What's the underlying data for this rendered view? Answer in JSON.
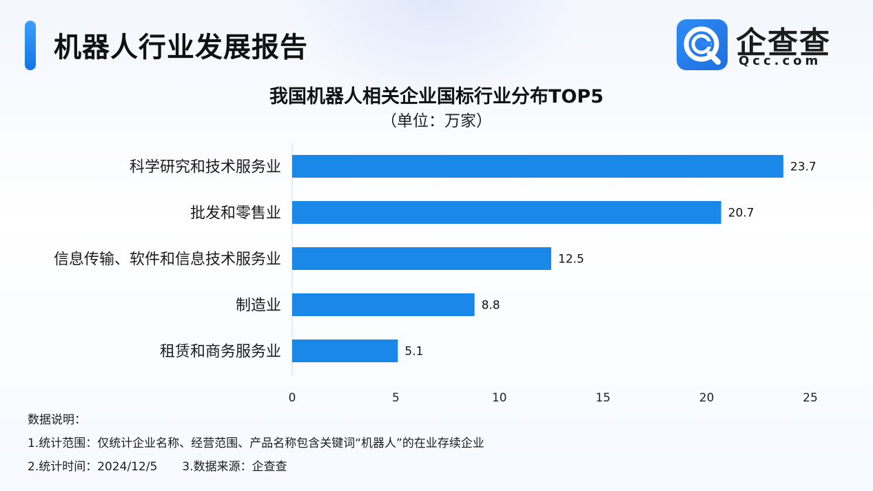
{
  "header": {
    "title": "机器人行业发展报告"
  },
  "logo": {
    "name": "企查查",
    "domain": "Qcc.com",
    "icon": "magnifier-q-icon"
  },
  "colors": {
    "bar": "#1a88e9",
    "accent": "#1473e6",
    "axis": "#d4d9e2"
  },
  "chart_data": {
    "type": "bar",
    "orientation": "horizontal",
    "title": "我国机器人相关企业国标行业分布TOP5",
    "subtitle": "（单位：万家）",
    "categories": [
      "科学研究和技术服务业",
      "批发和零售业",
      "信息传输、软件和信息技术服务业",
      "制造业",
      "租赁和商务服务业"
    ],
    "values": [
      23.7,
      20.7,
      12.5,
      8.8,
      5.1
    ],
    "value_labels": [
      "23.7",
      "20.7",
      "12.5",
      "8.8",
      "5.1"
    ],
    "xticks": [
      "0",
      "5",
      "10",
      "15",
      "20",
      "25"
    ],
    "xlim": [
      0,
      25
    ],
    "grid": false,
    "data_labels": true
  },
  "notes": {
    "heading": "数据说明：",
    "line1": "1.统计范围：仅统计企业名称、经营范围、产品名称包含关键词“机器人”的在业存续企业",
    "line2a": "2.统计时间：2024/12/5",
    "line2b": "3.数据来源：企查查"
  }
}
